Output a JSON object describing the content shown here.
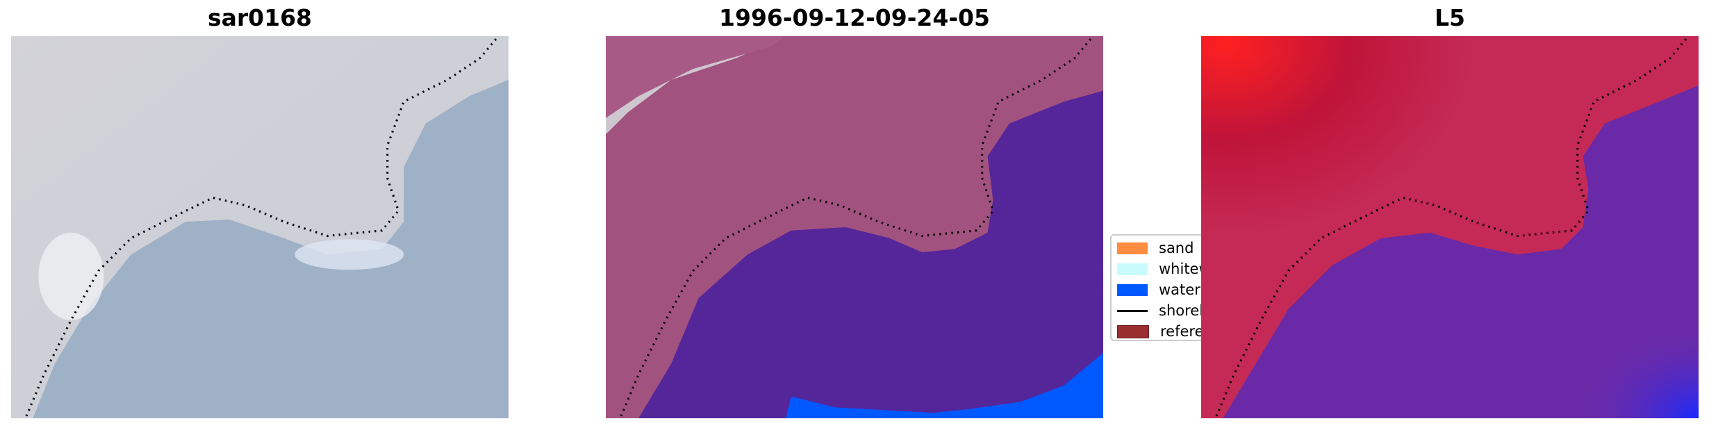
{
  "panels": [
    {
      "title": "sar0168"
    },
    {
      "title": "1996-09-12-09-24-05"
    },
    {
      "title": "L5"
    }
  ],
  "legend": {
    "items": [
      {
        "label": "sand",
        "color": "#ff8c3f",
        "type": "patch"
      },
      {
        "label": "whitew",
        "color": "#c8fcfc",
        "type": "patch"
      },
      {
        "label": "water",
        "color": "#0059ff",
        "type": "patch"
      },
      {
        "label": "shorel",
        "color": "#000000",
        "type": "line"
      },
      {
        "label": "referer",
        "color": "#9a2f2f",
        "type": "patch"
      }
    ]
  },
  "colors": {
    "rgb_land": "#cfd2d9",
    "rgb_water": "#9db0c6",
    "class_land": "#a2527f",
    "class_water": "#55259a",
    "class_blue": "#0059ff"
  }
}
